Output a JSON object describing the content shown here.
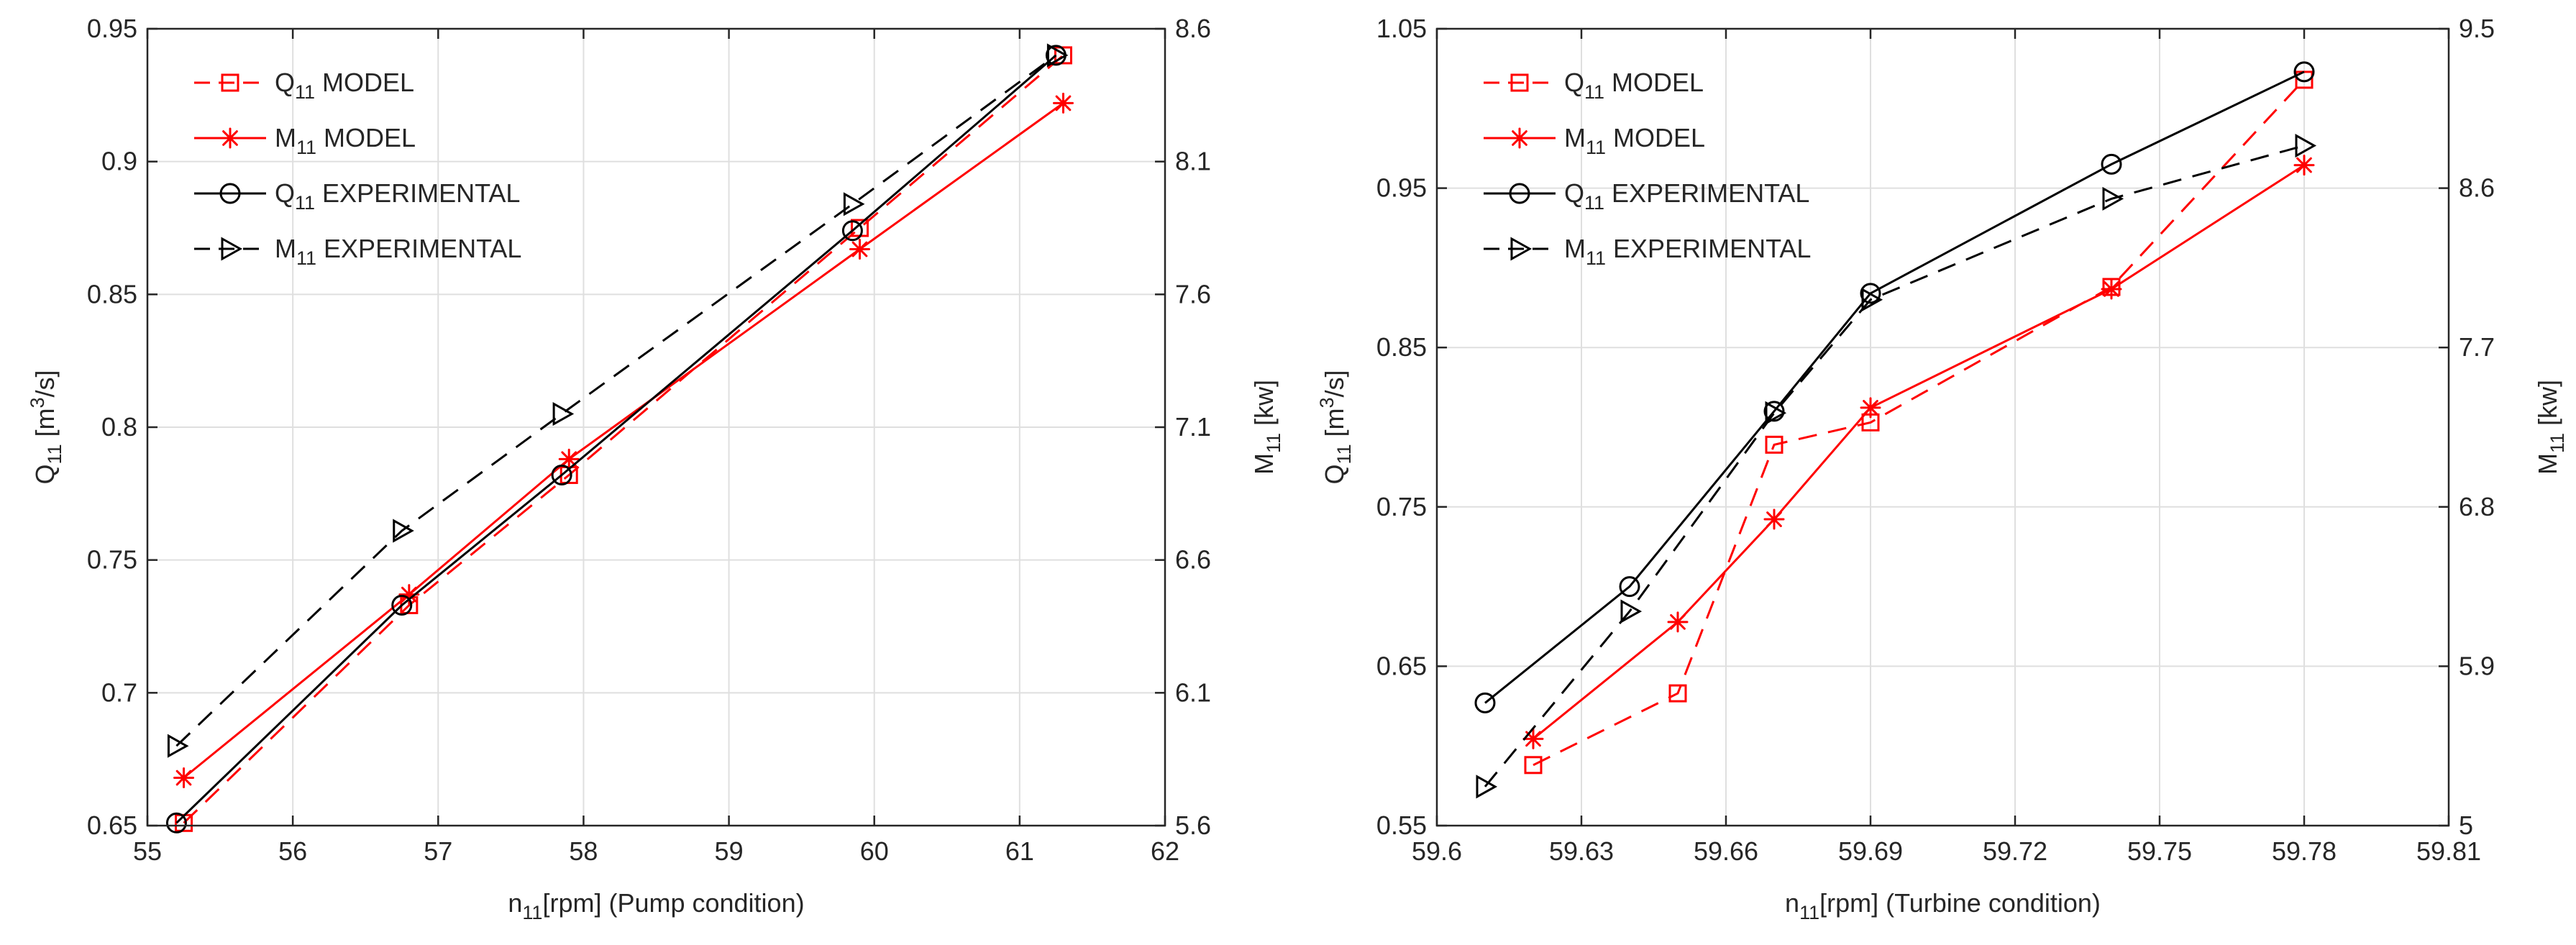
{
  "chart_data": [
    {
      "type": "line",
      "title": "",
      "xlabel": "n11[rpm] (Pump condition)",
      "xlabel_parts": {
        "main": "n",
        "sub": "11",
        "rest": "[rpm] (Pump condition)"
      },
      "ylabel_left": "Q11 [m3/s]",
      "ylabel_left_parts": {
        "main": "Q",
        "sub": "11",
        "mid": " [m",
        "sup": "3",
        "rest": "/s]"
      },
      "ylabel_right": "M11 [kw]",
      "ylabel_right_parts": {
        "main": "M",
        "sub": "11",
        "rest": " [kw]"
      },
      "xlim": [
        55,
        62
      ],
      "ylim_left": [
        0.65,
        0.95
      ],
      "ylim_right": [
        5.6,
        8.6
      ],
      "x_ticks": [
        "55",
        "56",
        "57",
        "58",
        "59",
        "60",
        "61",
        "62"
      ],
      "y_left_ticks": [
        "0.65",
        "0.7",
        "0.75",
        "0.8",
        "0.85",
        "0.9",
        "0.95"
      ],
      "y_right_ticks": [
        "5.6",
        "6.1",
        "6.6",
        "7.1",
        "7.6",
        "8.1",
        "8.6"
      ],
      "grid": true,
      "legend_position": "top-left",
      "series": [
        {
          "name": "Q11 MODEL",
          "name_main": "Q",
          "name_sub": "11",
          "name_rest": " MODEL",
          "axis": "left",
          "color": "#ff0000",
          "dash": "dashed",
          "marker": "square",
          "x": [
            55.25,
            56.8,
            57.9,
            59.9,
            61.3
          ],
          "y": [
            0.651,
            0.733,
            0.782,
            0.875,
            0.94
          ]
        },
        {
          "name": "M11 MODEL",
          "name_main": "M",
          "name_sub": "11",
          "name_rest": " MODEL",
          "axis": "right",
          "color": "#ff0000",
          "dash": "solid",
          "marker": "asterisk",
          "x": [
            55.25,
            56.8,
            57.9,
            59.9,
            61.3
          ],
          "y": [
            5.78,
            6.47,
            6.98,
            7.77,
            8.32
          ]
        },
        {
          "name": "Q11 EXPERIMENTAL",
          "name_main": "Q",
          "name_sub": "11",
          "name_rest": " EXPERIMENTAL",
          "axis": "left",
          "color": "#000000",
          "dash": "solid",
          "marker": "circle",
          "x": [
            55.2,
            56.75,
            57.85,
            59.85,
            61.25
          ],
          "y": [
            0.651,
            0.733,
            0.782,
            0.874,
            0.94
          ]
        },
        {
          "name": "M11 EXPERIMENTAL",
          "name_main": "M",
          "name_sub": "11",
          "name_rest": " EXPERIMENTAL",
          "axis": "right",
          "color": "#000000",
          "dash": "dashed",
          "marker": "triangle-right",
          "x": [
            55.2,
            56.75,
            57.85,
            59.85,
            61.25
          ],
          "y": [
            5.9,
            6.71,
            7.15,
            7.94,
            8.5
          ]
        }
      ]
    },
    {
      "type": "line",
      "title": "",
      "xlabel": "n11[rpm] (Turbine condition)",
      "xlabel_parts": {
        "main": "n",
        "sub": "11",
        "rest": "[rpm] (Turbine condition)"
      },
      "ylabel_left": "Q11 [m3/s]",
      "ylabel_left_parts": {
        "main": "Q",
        "sub": "11",
        "mid": " [m",
        "sup": "3",
        "rest": "/s]"
      },
      "ylabel_right": "M11 [kw]",
      "ylabel_right_parts": {
        "main": "M",
        "sub": "11",
        "rest": " [kw]"
      },
      "xlim": [
        59.6,
        59.81
      ],
      "ylim_left": [
        0.55,
        1.05
      ],
      "ylim_right": [
        5,
        9.5
      ],
      "x_ticks": [
        "59.6",
        "59.63",
        "59.66",
        "59.69",
        "59.72",
        "59.75",
        "59.78",
        "59.81"
      ],
      "y_left_ticks": [
        "0.55",
        "0.65",
        "0.75",
        "0.85",
        "0.95",
        "1.05"
      ],
      "y_right_ticks": [
        "5",
        "5.9",
        "6.8",
        "7.7",
        "8.6",
        "9.5"
      ],
      "grid": true,
      "legend_position": "top-left",
      "series": [
        {
          "name": "Q11 MODEL",
          "name_main": "Q",
          "name_sub": "11",
          "name_rest": " MODEL",
          "axis": "left",
          "color": "#ff0000",
          "dash": "dashed",
          "marker": "square",
          "x": [
            59.62,
            59.65,
            59.67,
            59.69,
            59.74,
            59.78
          ],
          "y": [
            0.588,
            0.633,
            0.789,
            0.803,
            0.888,
            1.018
          ]
        },
        {
          "name": "M11 MODEL",
          "name_main": "M",
          "name_sub": "11",
          "name_rest": " MODEL",
          "axis": "right",
          "color": "#ff0000",
          "dash": "solid",
          "marker": "asterisk",
          "x": [
            59.62,
            59.65,
            59.67,
            59.69,
            59.74,
            59.78
          ],
          "y": [
            5.49,
            6.15,
            6.73,
            7.36,
            8.03,
            8.73
          ]
        },
        {
          "name": "Q11 EXPERIMENTAL",
          "name_main": "Q",
          "name_sub": "11",
          "name_rest": " EXPERIMENTAL",
          "axis": "left",
          "color": "#000000",
          "dash": "solid",
          "marker": "circle",
          "x": [
            59.61,
            59.64,
            59.67,
            59.69,
            59.74,
            59.78
          ],
          "y": [
            0.627,
            0.7,
            0.81,
            0.884,
            0.965,
            1.023
          ]
        },
        {
          "name": "M11 EXPERIMENTAL",
          "name_main": "M",
          "name_sub": "11",
          "name_rest": " EXPERIMENTAL",
          "axis": "right",
          "color": "#000000",
          "dash": "dashed",
          "marker": "triangle-right",
          "x": [
            59.61,
            59.64,
            59.67,
            59.69,
            59.74,
            59.78
          ],
          "y": [
            5.22,
            6.21,
            7.33,
            7.97,
            8.54,
            8.84
          ]
        }
      ]
    }
  ]
}
